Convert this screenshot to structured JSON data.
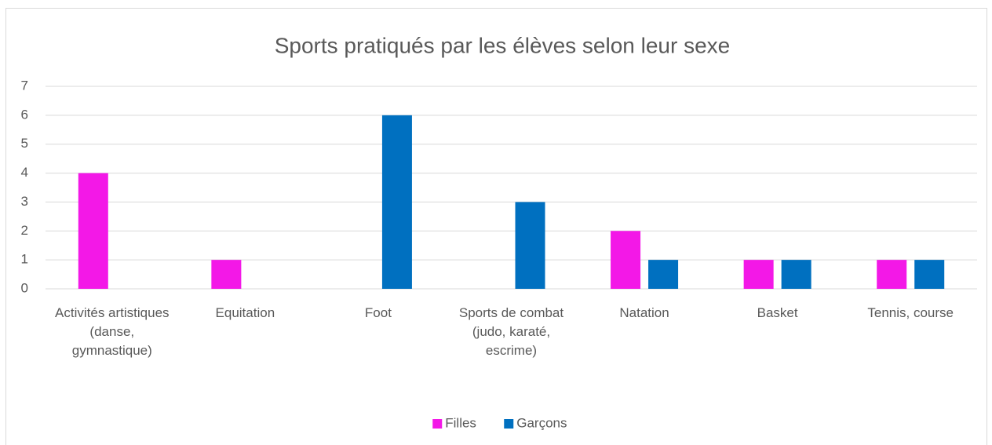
{
  "chart_data": {
    "type": "bar",
    "title": "Sports pratiqués par les élèves selon leur sexe",
    "categories": [
      "Activités artistiques (danse, gymnastique)",
      "Equitation",
      "Foot",
      "Sports de combat (judo, karaté, escrime)",
      "Natation",
      "Basket",
      "Tennis, course"
    ],
    "series": [
      {
        "name": "Filles",
        "color": "#f318e7",
        "values": [
          4,
          1,
          0,
          0,
          2,
          1,
          1
        ]
      },
      {
        "name": "Garçons",
        "color": "#0070c0",
        "values": [
          0,
          0,
          6,
          3,
          1,
          1,
          1
        ]
      }
    ],
    "ylim": [
      0,
      7
    ],
    "yticks": [
      0,
      1,
      2,
      3,
      4,
      5,
      6,
      7
    ],
    "grid": true,
    "legend": "bottom"
  }
}
